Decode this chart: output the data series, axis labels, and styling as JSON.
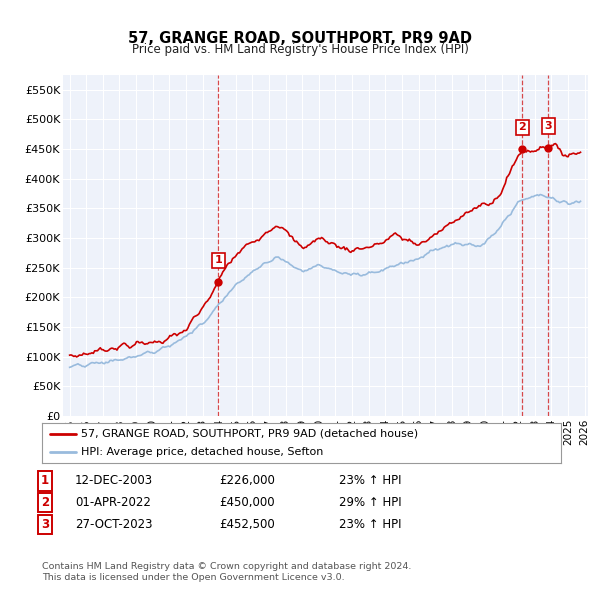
{
  "title": "57, GRANGE ROAD, SOUTHPORT, PR9 9AD",
  "subtitle": "Price paid vs. HM Land Registry's House Price Index (HPI)",
  "ylim": [
    0,
    575000
  ],
  "yticks": [
    0,
    50000,
    100000,
    150000,
    200000,
    250000,
    300000,
    350000,
    400000,
    450000,
    500000,
    550000
  ],
  "ytick_labels": [
    "£0",
    "£50K",
    "£100K",
    "£150K",
    "£200K",
    "£250K",
    "£300K",
    "£350K",
    "£400K",
    "£450K",
    "£500K",
    "£550K"
  ],
  "transactions": [
    {
      "label": "1",
      "date_str": "12-DEC-2003",
      "price": 226000,
      "price_str": "£226,000",
      "pct_str": "23% ↑ HPI",
      "x": 2003.95
    },
    {
      "label": "2",
      "date_str": "01-APR-2022",
      "price": 450000,
      "price_str": "£450,000",
      "pct_str": "29% ↑ HPI",
      "x": 2022.25
    },
    {
      "label": "3",
      "date_str": "27-OCT-2023",
      "price": 452500,
      "price_str": "£452,500",
      "pct_str": "23% ↑ HPI",
      "x": 2023.82
    }
  ],
  "legend_line1": "57, GRANGE ROAD, SOUTHPORT, PR9 9AD (detached house)",
  "legend_line2": "HPI: Average price, detached house, Sefton",
  "footer_line1": "Contains HM Land Registry data © Crown copyright and database right 2024.",
  "footer_line2": "This data is licensed under the Open Government Licence v3.0.",
  "red_color": "#cc0000",
  "blue_color": "#99bbdd",
  "background_color": "#eef2fa",
  "grid_color": "#ffffff"
}
